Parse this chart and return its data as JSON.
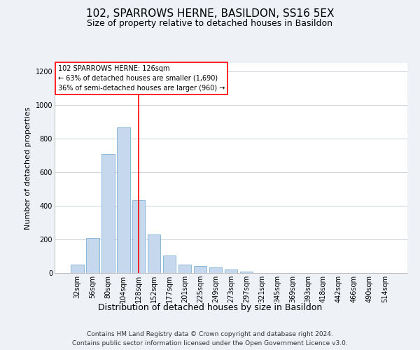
{
  "title": "102, SPARROWS HERNE, BASILDON, SS16 5EX",
  "subtitle": "Size of property relative to detached houses in Basildon",
  "xlabel": "Distribution of detached houses by size in Basildon",
  "ylabel": "Number of detached properties",
  "footer_line1": "Contains HM Land Registry data © Crown copyright and database right 2024.",
  "footer_line2": "Contains public sector information licensed under the Open Government Licence v3.0.",
  "categories": [
    "32sqm",
    "56sqm",
    "80sqm",
    "104sqm",
    "128sqm",
    "152sqm",
    "177sqm",
    "201sqm",
    "225sqm",
    "249sqm",
    "273sqm",
    "297sqm",
    "321sqm",
    "345sqm",
    "369sqm",
    "393sqm",
    "418sqm",
    "442sqm",
    "466sqm",
    "490sqm",
    "514sqm"
  ],
  "values": [
    50,
    210,
    710,
    865,
    435,
    230,
    105,
    48,
    40,
    32,
    22,
    10,
    0,
    0,
    0,
    0,
    0,
    0,
    0,
    0,
    0
  ],
  "bar_color": "#c5d8ed",
  "bar_edge_color": "#7fb0d4",
  "vline_x": 4,
  "vline_color": "red",
  "annotation_text": "102 SPARROWS HERNE: 126sqm\n← 63% of detached houses are smaller (1,690)\n36% of semi-detached houses are larger (960) →",
  "annotation_box_color": "#ffffff",
  "annotation_box_edge": "red",
  "ylim": [
    0,
    1250
  ],
  "yticks": [
    0,
    200,
    400,
    600,
    800,
    1000,
    1200
  ],
  "bg_color": "#eef2f7",
  "plot_bg_color": "#ffffff",
  "grid_color": "#c8d4e0",
  "title_fontsize": 11,
  "subtitle_fontsize": 9,
  "ylabel_fontsize": 8,
  "xlabel_fontsize": 9,
  "tick_fontsize": 7,
  "annotation_fontsize": 7,
  "footer_fontsize": 6.5
}
